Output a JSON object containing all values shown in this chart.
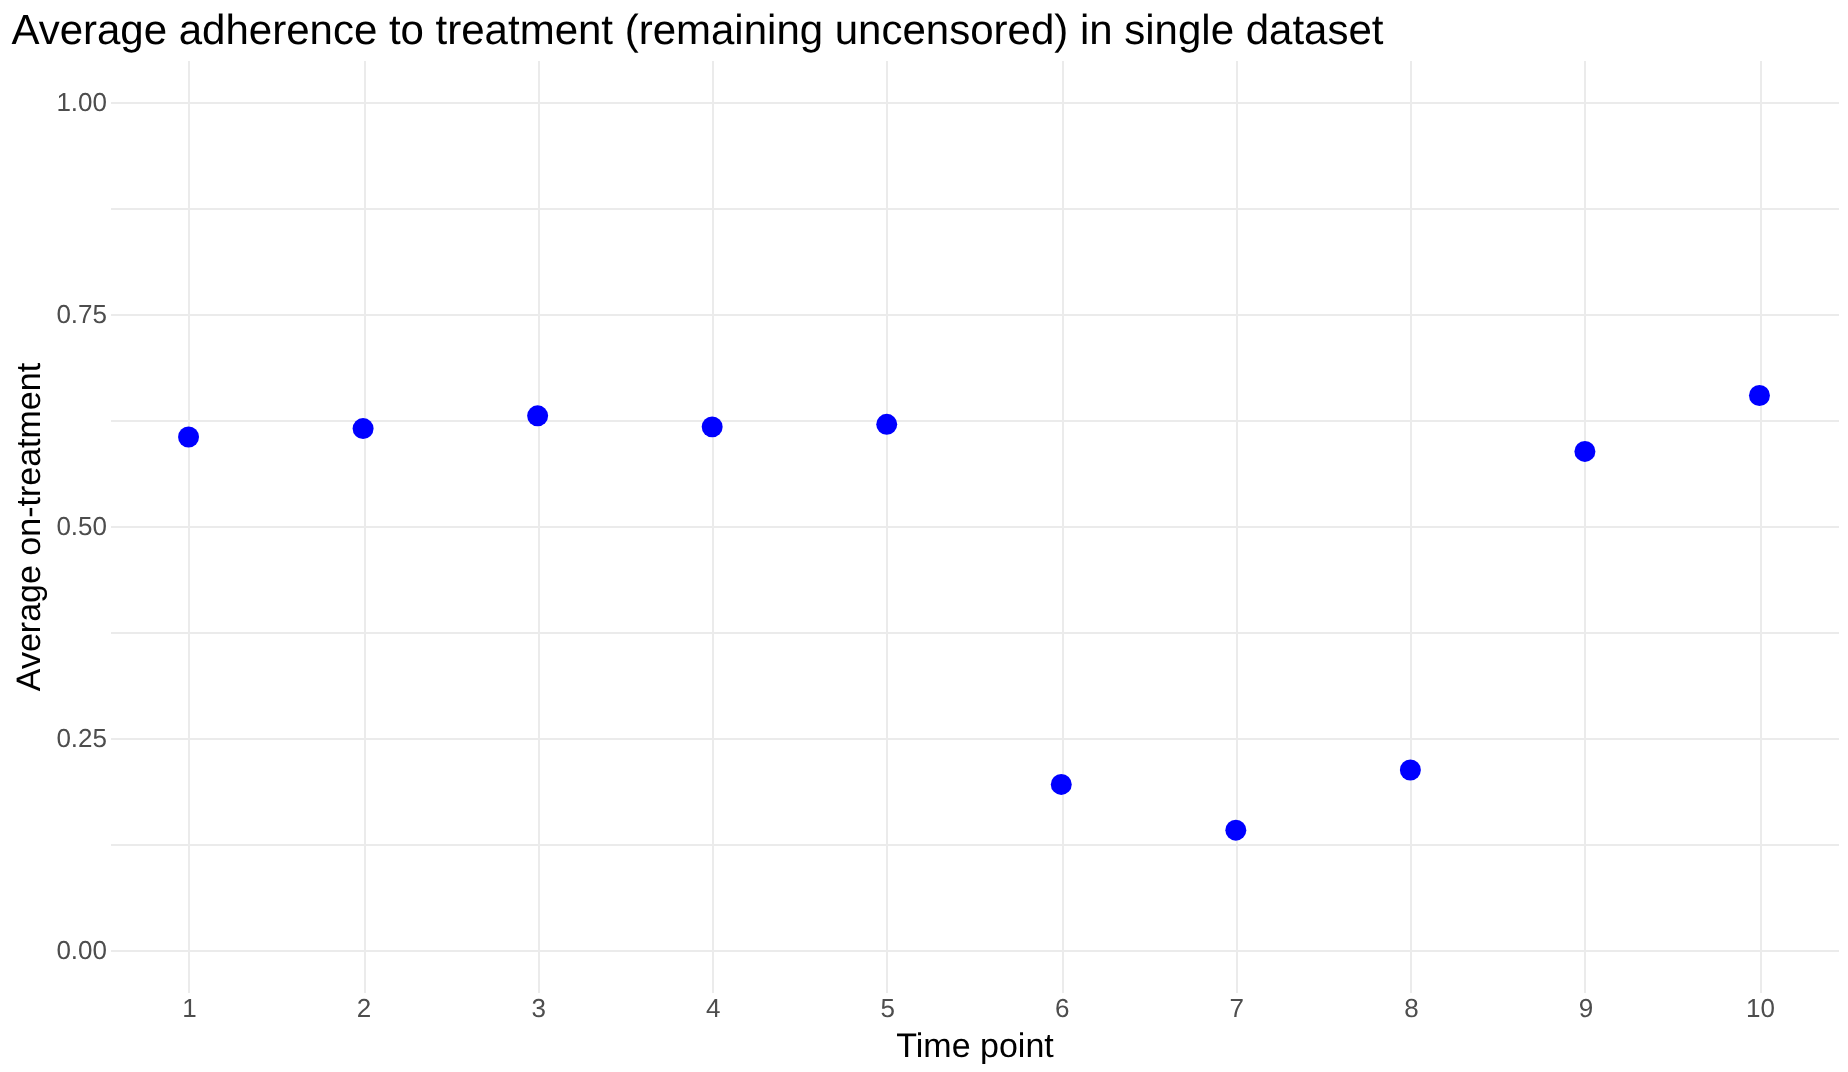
{
  "chart_data": {
    "type": "scatter",
    "title": "Average adherence to treatment (remaining uncensored) in single dataset",
    "xlabel": "Time point",
    "ylabel": "Average on-treatment",
    "x": [
      1,
      2,
      3,
      4,
      5,
      6,
      7,
      8,
      9,
      10
    ],
    "series": [
      {
        "color": "#0000ff",
        "values": [
          0.605,
          0.615,
          0.63,
          0.617,
          0.62,
          0.195,
          0.141,
          0.212,
          0.588,
          0.654
        ]
      }
    ],
    "xlim": [
      0.55,
      10.45
    ],
    "ylim": [
      -0.05,
      1.05
    ],
    "xticks": [
      1,
      2,
      3,
      4,
      5,
      6,
      7,
      8,
      9,
      10
    ],
    "yticks": [
      {
        "value": 0,
        "label": "0.00"
      },
      {
        "value": 0.125,
        "label": null
      },
      {
        "value": 0.25,
        "label": "0.25"
      },
      {
        "value": 0.375,
        "label": null
      },
      {
        "value": 0.5,
        "label": "0.50"
      },
      {
        "value": 0.625,
        "label": null
      },
      {
        "value": 0.75,
        "label": "0.75"
      },
      {
        "value": 0.875,
        "label": null
      },
      {
        "value": 1,
        "label": "1.00"
      }
    ],
    "grid": true,
    "marker": "circle"
  }
}
